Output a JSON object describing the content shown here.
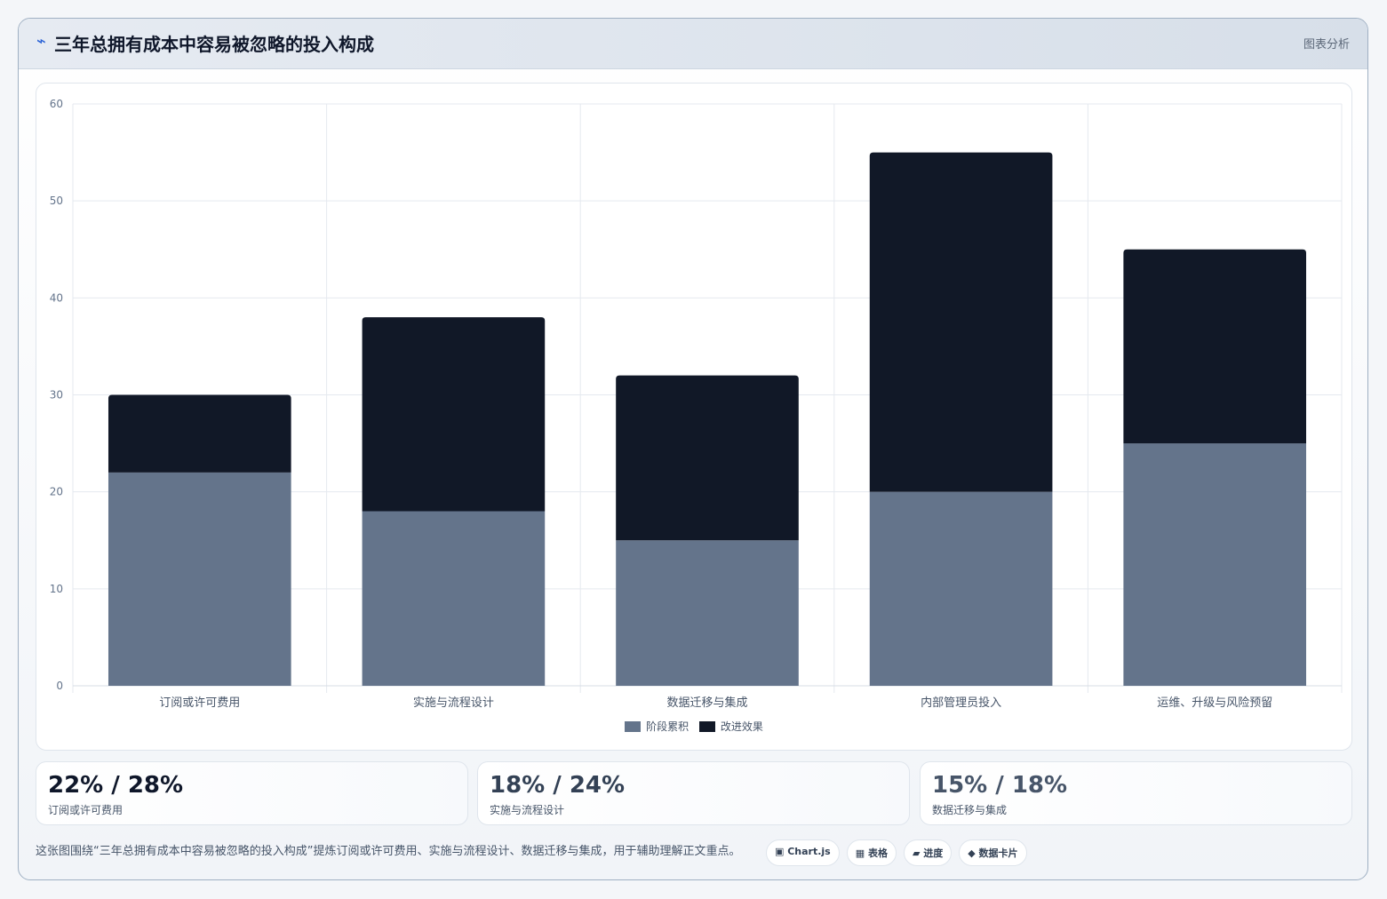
{
  "header": {
    "icon": "lightning-icon",
    "title": "三年总拥有成本中容易被忽略的投入构成",
    "meta": "图表分析"
  },
  "chart_data": {
    "type": "bar",
    "stacked": true,
    "categories": [
      "订阅或许可费用",
      "实施与流程设计",
      "数据迁移与集成",
      "内部管理员投入",
      "运维、升级与风险预留"
    ],
    "series": [
      {
        "name": "阶段累积",
        "values": [
          22,
          18,
          15,
          20,
          25
        ],
        "color": "#64748b"
      },
      {
        "name": "改进效果",
        "values": [
          8,
          20,
          17,
          35,
          20
        ],
        "color": "#111827"
      }
    ],
    "ylim": [
      0,
      60
    ],
    "yticks": [
      0,
      10,
      20,
      30,
      40,
      50,
      60
    ],
    "grid": true,
    "legend_position": "bottom"
  },
  "stats": [
    {
      "value": "22% / 28%",
      "label": "订阅或许可费用",
      "color": "#0f172a"
    },
    {
      "value": "18% / 24%",
      "label": "实施与流程设计",
      "color": "#334155"
    },
    {
      "value": "15% / 18%",
      "label": "数据迁移与集成",
      "color": "#475569"
    }
  ],
  "footer": {
    "caption": "这张图围绕“三年总拥有成本中容易被忽略的投入构成”提炼订阅或许可费用、实施与流程设计、数据迁移与集成，用于辅助理解正文重点。",
    "chips": [
      "▣ Chart.js",
      "▦ 表格",
      "▰ 进度",
      "◆ 数据卡片"
    ]
  }
}
